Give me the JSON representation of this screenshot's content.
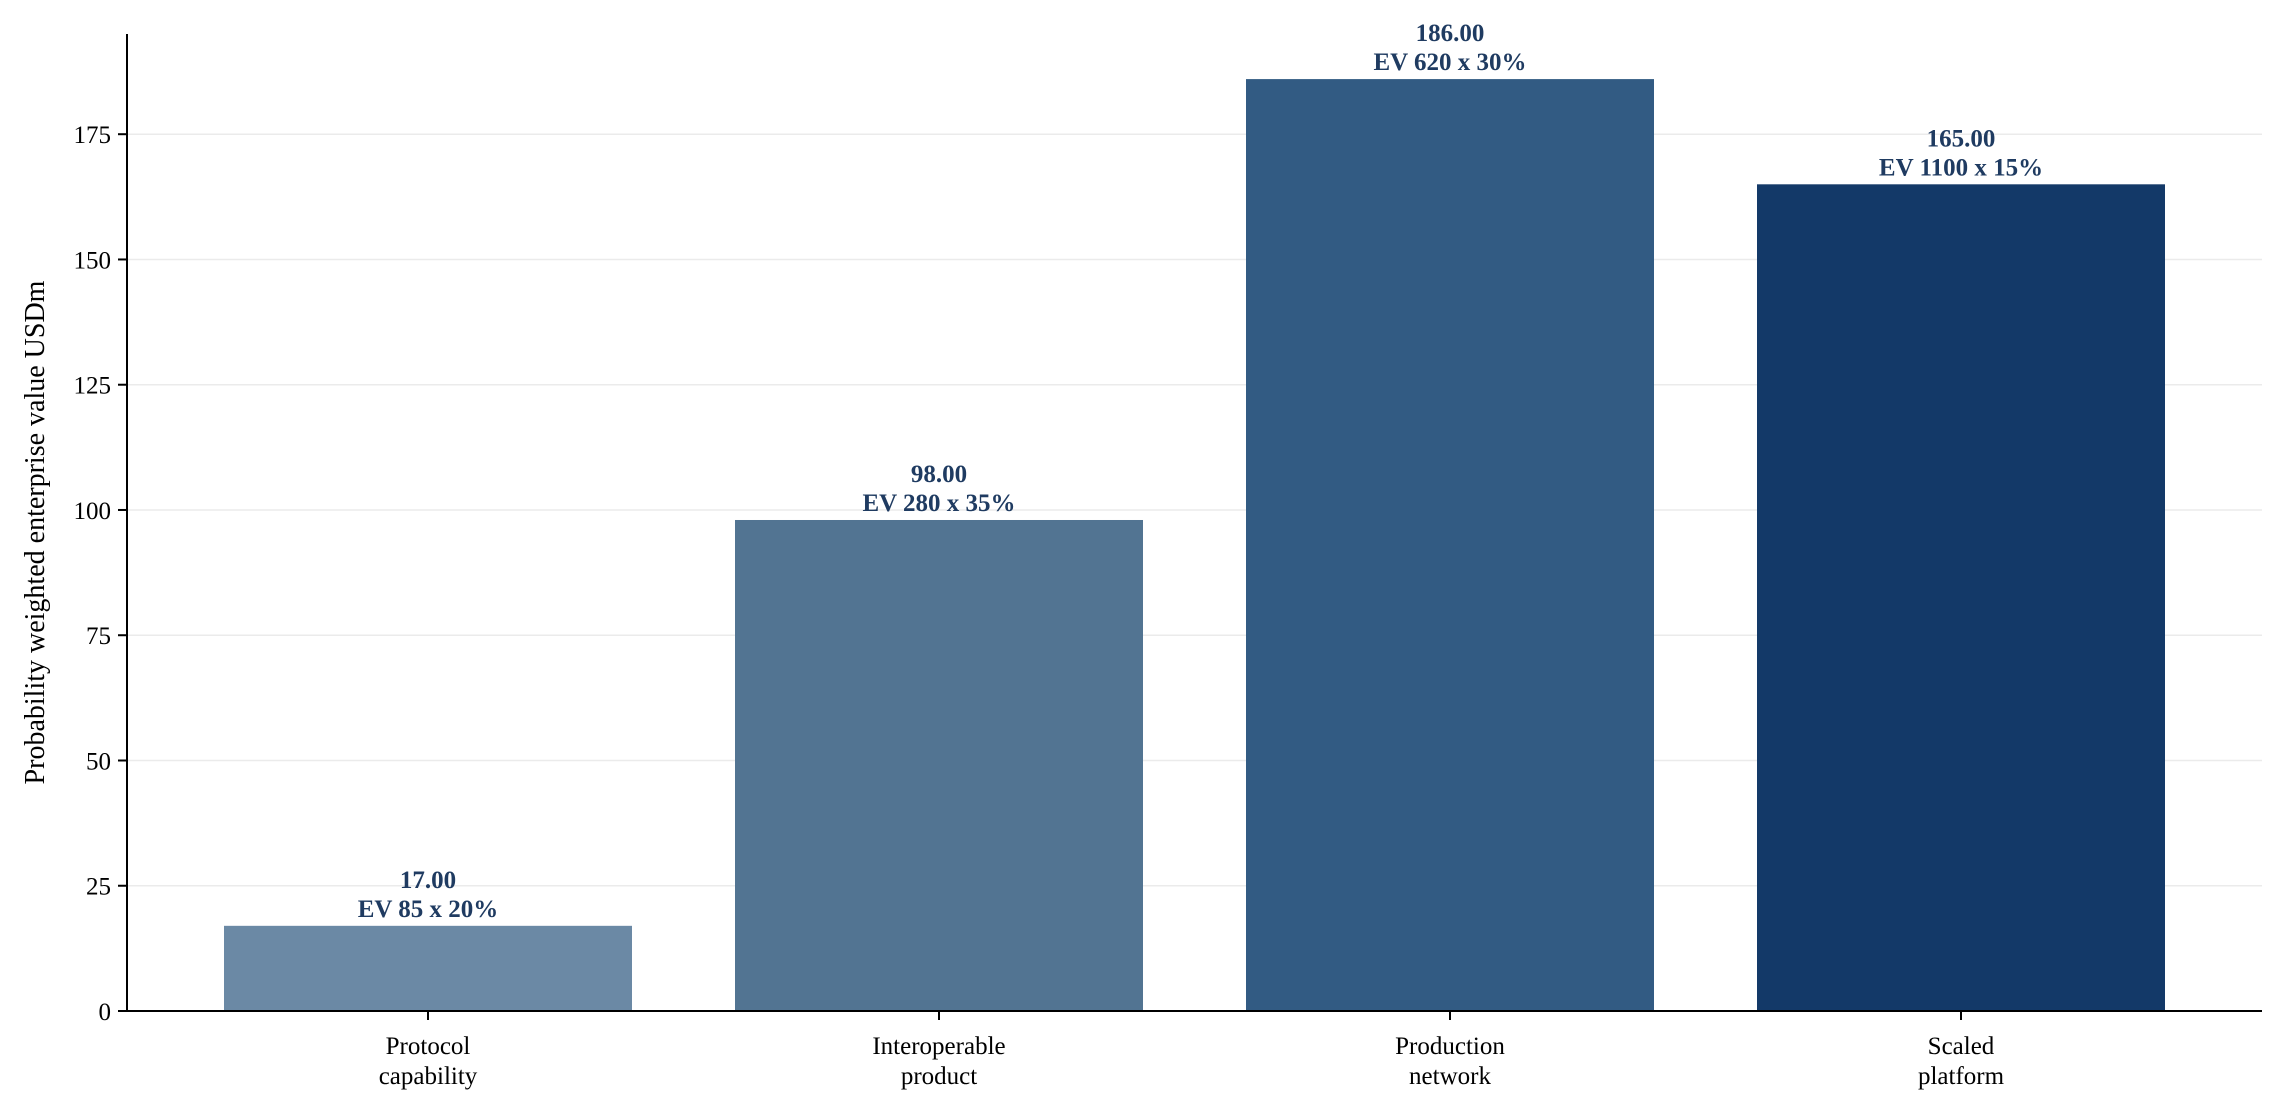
{
  "chart_data": {
    "type": "bar",
    "title": "",
    "xlabel": "",
    "ylabel": "Probability weighted enterprise value USDm",
    "ylim": [
      0,
      195
    ],
    "yticks": [
      0,
      25,
      50,
      75,
      100,
      125,
      150,
      175
    ],
    "grid": "horizontal",
    "legend": "none",
    "categories": [
      [
        "Protocol",
        "capability"
      ],
      [
        "Interoperable",
        "product"
      ],
      [
        "Production",
        "network"
      ],
      [
        "Scaled",
        "platform"
      ]
    ],
    "values": [
      17.0,
      98.0,
      186.0,
      165.0
    ],
    "value_labels": [
      "17.00",
      "98.00",
      "186.00",
      "165.00"
    ],
    "annotations": [
      "EV 85 x 20%",
      "EV 280 x 35%",
      "EV 620 x 30%",
      "EV 1100 x 15%"
    ],
    "colors": [
      "#6b89a5",
      "#527492",
      "#325b83",
      "#133968"
    ],
    "label_color": "#1f3b61"
  }
}
